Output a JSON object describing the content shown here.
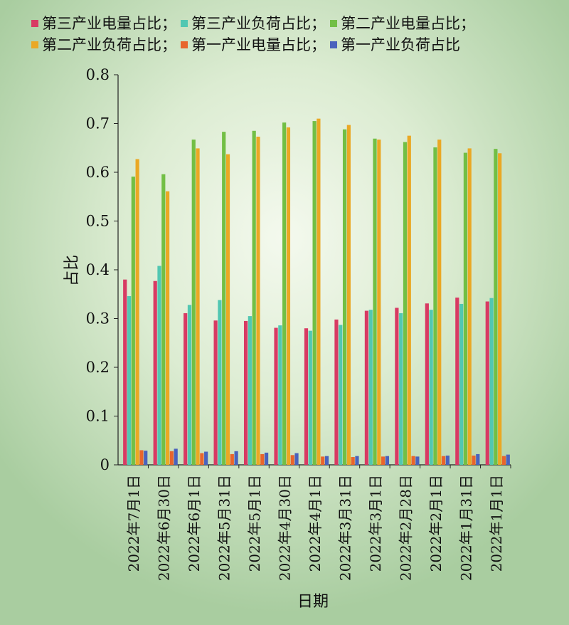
{
  "chart_data": {
    "type": "bar",
    "xlabel": "日期",
    "ylabel": "占比",
    "ylim": [
      0,
      0.8
    ],
    "yticks": [
      "0",
      "0.1",
      "0.2",
      "0.3",
      "0.4",
      "0.5",
      "0.6",
      "0.7",
      "0.8"
    ],
    "grid": false,
    "legend_position": "top",
    "categories": [
      "2022年7月1日",
      "2022年6月30日",
      "2022年6月1日",
      "2022年5月31日",
      "2022年5月1日",
      "2022年4月30日",
      "2022年4月1日",
      "2022年3月31日",
      "2022年3月1日",
      "2022年2月28日",
      "2022年2月1日",
      "2022年1月31日",
      "2022年1月1日"
    ],
    "series": [
      {
        "name": "第三产业电量占比；",
        "color": "#d83a63",
        "values": [
          0.38,
          0.377,
          0.311,
          0.296,
          0.295,
          0.281,
          0.28,
          0.298,
          0.316,
          0.322,
          0.331,
          0.343,
          0.335
        ]
      },
      {
        "name": "第三产业负荷占比；",
        "color": "#52c7b2",
        "values": [
          0.346,
          0.408,
          0.328,
          0.338,
          0.305,
          0.286,
          0.275,
          0.287,
          0.318,
          0.311,
          0.318,
          0.33,
          0.342
        ]
      },
      {
        "name": "第二产业电量占比；",
        "color": "#72bf45",
        "values": [
          0.591,
          0.596,
          0.667,
          0.683,
          0.685,
          0.702,
          0.705,
          0.688,
          0.669,
          0.662,
          0.651,
          0.64,
          0.648
        ]
      },
      {
        "name": "第二产业负荷占比；",
        "color": "#eaa824",
        "values": [
          0.627,
          0.561,
          0.649,
          0.637,
          0.673,
          0.692,
          0.71,
          0.697,
          0.667,
          0.675,
          0.667,
          0.649,
          0.639
        ]
      },
      {
        "name": "第一产业电量占比；",
        "color": "#e8652c",
        "values": [
          0.03,
          0.028,
          0.024,
          0.022,
          0.022,
          0.02,
          0.017,
          0.016,
          0.017,
          0.018,
          0.018,
          0.019,
          0.018
        ]
      },
      {
        "name": "第一产业负荷占比",
        "color": "#4a62bd",
        "values": [
          0.029,
          0.033,
          0.027,
          0.028,
          0.025,
          0.024,
          0.018,
          0.018,
          0.018,
          0.017,
          0.019,
          0.022,
          0.021
        ]
      }
    ]
  }
}
